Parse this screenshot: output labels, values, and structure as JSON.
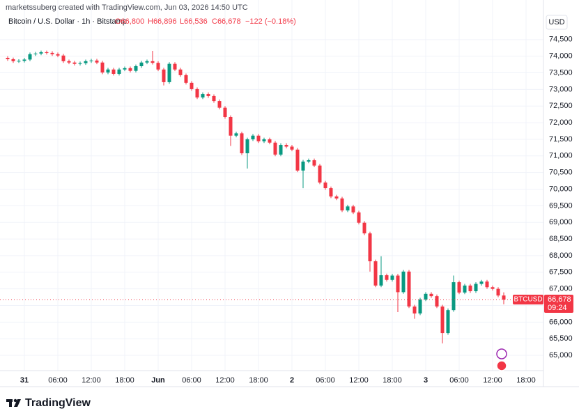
{
  "header": {
    "attribution": "marketssuberg created with TradingView.com, Jun 03, 2026 14:50 UTC",
    "symbol": "Bitcoin / U.S. Dollar · 1h · Bitstamp",
    "ohlc": [
      "O66,800",
      "H66,896",
      "L66,536",
      "C66,678",
      "−122 (−0.18%)"
    ]
  },
  "chart_data": {
    "type": "candlestick",
    "categories": [
      null,
      null,
      null,
      "31",
      null,
      null,
      null,
      null,
      null,
      "06:00",
      null,
      null,
      null,
      null,
      null,
      "12:00",
      null,
      null,
      null,
      null,
      null,
      "18:00",
      null,
      null,
      null,
      null,
      null,
      "Jun",
      null,
      null,
      null,
      null,
      null,
      "06:00",
      null,
      null,
      null,
      null,
      null,
      "12:00",
      null,
      null,
      null,
      null,
      null,
      "18:00",
      null,
      null,
      null,
      null,
      null,
      "2",
      null,
      null,
      null,
      null,
      null,
      "06:00",
      null,
      null,
      null,
      null,
      null,
      "12:00",
      null,
      null,
      null,
      null,
      null,
      "18:00",
      null,
      null,
      null,
      null,
      null,
      "3",
      null,
      null,
      null,
      null,
      null,
      "06:00",
      null,
      null,
      null,
      null,
      null,
      "12:00",
      null,
      null,
      null,
      null,
      null,
      "18:00",
      null,
      null,
      null
    ],
    "open": [
      73950,
      73910,
      73850,
      73860,
      73900,
      74060,
      74080,
      74120,
      74100,
      74060,
      74020,
      73850,
      73810,
      73770,
      73790,
      73850,
      73870,
      73810,
      73510,
      73600,
      73470,
      73600,
      73640,
      73560,
      73700,
      73810,
      73850,
      73800,
      73600,
      73220,
      73770,
      73600,
      73430,
      73200,
      73010,
      72760,
      72860,
      72800,
      72650,
      72450,
      72170,
      71610,
      71680,
      71080,
      71500,
      71610,
      71440,
      71500,
      71400,
      71040,
      71330,
      71280,
      71190,
      70560,
      70830,
      70870,
      70710,
      70200,
      70030,
      69780,
      69720,
      69360,
      69480,
      69300,
      68990,
      68670,
      67830,
      67100,
      67410,
      67270,
      67400,
      66900,
      67520,
      66470,
      66260,
      66680,
      66850,
      66780,
      66470,
      65670,
      66360,
      67200,
      66890,
      67100,
      66930,
      67150,
      67220,
      67050,
      67000,
      66800,
      null,
      null,
      null,
      null,
      null,
      null,
      null
    ],
    "high": [
      74000,
      73960,
      73910,
      73950,
      74110,
      74130,
      74170,
      74170,
      74150,
      74110,
      74070,
      73900,
      73860,
      73840,
      73900,
      73920,
      73920,
      73860,
      73650,
      73650,
      73650,
      73690,
      73690,
      73750,
      73860,
      73900,
      74160,
      73850,
      73650,
      73820,
      73820,
      73650,
      73480,
      73250,
      73060,
      72910,
      72910,
      72850,
      72700,
      72500,
      72220,
      71730,
      71730,
      71550,
      71660,
      71660,
      71550,
      71550,
      71450,
      71380,
      71380,
      71330,
      71240,
      70880,
      70920,
      70920,
      70760,
      70250,
      70080,
      69830,
      69770,
      69530,
      69530,
      69350,
      69040,
      68720,
      67880,
      67980,
      67460,
      67450,
      67450,
      67570,
      67570,
      66520,
      66730,
      66900,
      66900,
      66830,
      66520,
      66410,
      67400,
      67250,
      67150,
      67150,
      67200,
      67270,
      67270,
      67100,
      67050,
      66896,
      null,
      null,
      null,
      null,
      null,
      null,
      null
    ],
    "low": [
      73860,
      73800,
      73800,
      73810,
      73850,
      74010,
      74030,
      74050,
      74010,
      73970,
      73800,
      73760,
      73720,
      73720,
      73740,
      73800,
      73760,
      73460,
      73460,
      73420,
      73420,
      73550,
      73510,
      73510,
      73650,
      73760,
      73750,
      73550,
      73120,
      73170,
      73550,
      73380,
      73150,
      72960,
      72710,
      72710,
      72750,
      72600,
      72400,
      72120,
      71300,
      71560,
      71030,
      70620,
      71450,
      71390,
      71390,
      71350,
      70990,
      70990,
      71230,
      71140,
      70510,
      70030,
      70780,
      70660,
      70150,
      69980,
      69730,
      69670,
      69310,
      69310,
      69250,
      68940,
      68620,
      67520,
      67050,
      67050,
      67220,
      67220,
      66300,
      66850,
      66420,
      66100,
      66210,
      66630,
      66730,
      66420,
      65360,
      65620,
      66310,
      66840,
      66840,
      66880,
      66880,
      67100,
      67000,
      66950,
      66750,
      66536,
      null,
      null,
      null,
      null,
      null,
      null,
      null
    ],
    "close": [
      73910,
      73850,
      73860,
      73900,
      74060,
      74080,
      74120,
      74100,
      74060,
      74020,
      73850,
      73810,
      73770,
      73790,
      73850,
      73870,
      73810,
      73510,
      73600,
      73470,
      73600,
      73640,
      73560,
      73700,
      73810,
      73850,
      73800,
      73600,
      73220,
      73770,
      73600,
      73430,
      73200,
      73010,
      72760,
      72860,
      72800,
      72650,
      72450,
      72170,
      71610,
      71680,
      71080,
      71500,
      71610,
      71440,
      71500,
      71400,
      71040,
      71330,
      71280,
      71190,
      70560,
      70830,
      70870,
      70710,
      70200,
      70030,
      69780,
      69720,
      69360,
      69480,
      69300,
      68990,
      68670,
      67830,
      67100,
      67410,
      67270,
      67400,
      66900,
      67520,
      66470,
      66260,
      66680,
      66850,
      66780,
      66470,
      65670,
      66360,
      67200,
      66890,
      67100,
      66930,
      67150,
      67220,
      67050,
      67000,
      66800,
      66678,
      null,
      null,
      null,
      null,
      null,
      null,
      null
    ],
    "up_color": "#089981",
    "down_color": "#f23645",
    "ylim": [
      64540,
      75230
    ],
    "yticks": [
      {
        "value": 65000,
        "label": "65,000"
      },
      {
        "value": 65500,
        "label": "65,500"
      },
      {
        "value": 66000,
        "label": "66,000"
      },
      {
        "value": 66500,
        "label": "66,500"
      },
      {
        "value": 67000,
        "label": "67,000"
      },
      {
        "value": 67500,
        "label": "67,500"
      },
      {
        "value": 68000,
        "label": "68,000"
      },
      {
        "value": 68500,
        "label": "68,500"
      },
      {
        "value": 69000,
        "label": "69,000"
      },
      {
        "value": 69500,
        "label": "69,500"
      },
      {
        "value": 70000,
        "label": "70,000"
      },
      {
        "value": 70500,
        "label": "70,500"
      },
      {
        "value": 71000,
        "label": "71,000"
      },
      {
        "value": 71500,
        "label": "71,500"
      },
      {
        "value": 72000,
        "label": "72,000"
      },
      {
        "value": 72500,
        "label": "72,500"
      },
      {
        "value": 73000,
        "label": "73,000"
      },
      {
        "value": 73500,
        "label": "73,500"
      },
      {
        "value": 74000,
        "label": "74,000"
      },
      {
        "value": 74500,
        "label": "74,500"
      }
    ],
    "grid": true,
    "currency": "USD",
    "last_price": {
      "symbol": "BTCUSD",
      "label": "66,678",
      "countdown": "09:24"
    }
  },
  "footer": {
    "logo": "TradingView"
  }
}
